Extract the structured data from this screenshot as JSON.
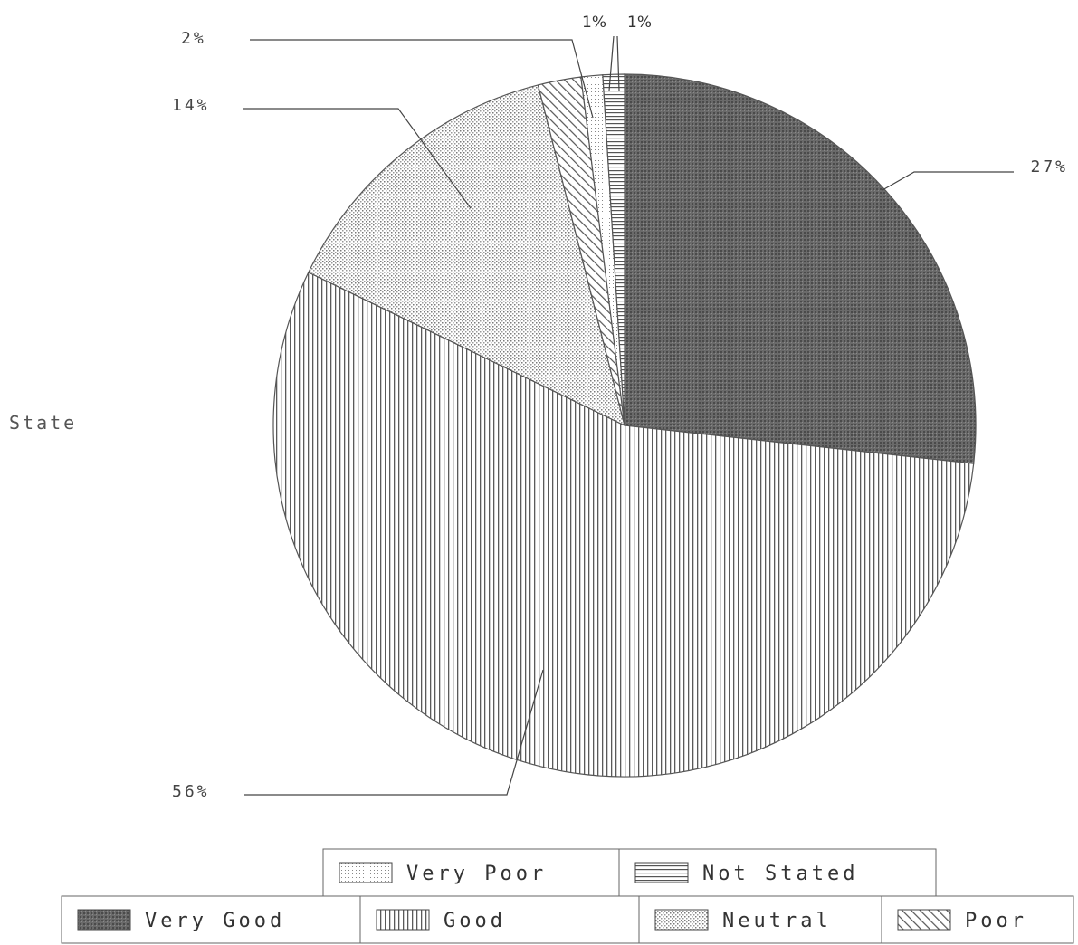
{
  "chart_data": {
    "type": "pie",
    "side_label": "State",
    "slices": [
      {
        "name": "Very Good",
        "value": 27,
        "label": "27%",
        "pattern": "dark"
      },
      {
        "name": "Good",
        "value": 56,
        "label": "56%",
        "pattern": "vertical"
      },
      {
        "name": "Neutral",
        "value": 14,
        "label": "14%",
        "pattern": "dots"
      },
      {
        "name": "Poor",
        "value": 2,
        "label": "2%",
        "pattern": "diagonal"
      },
      {
        "name": "Very Poor",
        "value": 1,
        "label": "1%",
        "pattern": "light"
      },
      {
        "name": "Not Stated",
        "value": 1,
        "label": "1%",
        "pattern": "horizontal"
      }
    ],
    "legend": {
      "row1": [
        "Very Poor",
        "Not Stated"
      ],
      "row2": [
        "Very Good",
        "Good",
        "Neutral",
        "Poor"
      ]
    },
    "legend_placement": "bottom"
  }
}
